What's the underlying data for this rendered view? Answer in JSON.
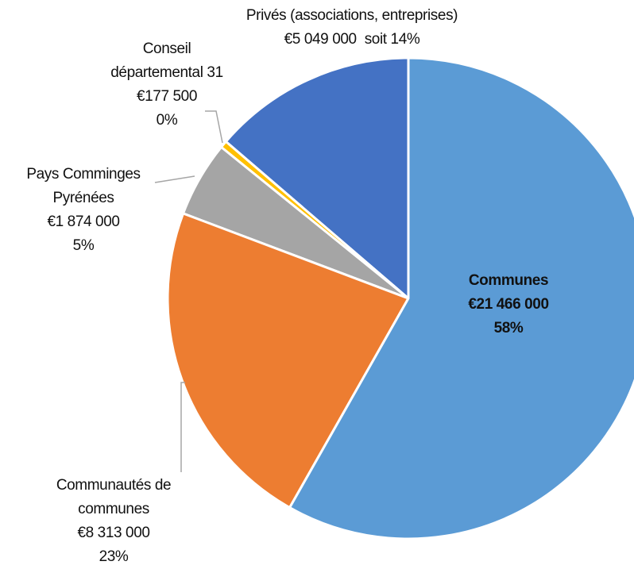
{
  "chart_data": {
    "type": "pie",
    "categories": [
      "Communes",
      "Communautés de communes",
      "Pays Comminges Pyrénées",
      "Conseil départemental 31",
      "Privés (associations, entreprises)"
    ],
    "values": [
      21466000,
      8313000,
      1874000,
      177500,
      5049000
    ],
    "value_labels": [
      "€21 466 000",
      "€8 313 000",
      "€1 874 000",
      "€177 500",
      "€5 049 000"
    ],
    "percent_labels": [
      "58%",
      "23%",
      "5%",
      "0%",
      "soit 14%"
    ],
    "colors": [
      "#5b9bd5",
      "#ed7d31",
      "#a5a5a5",
      "#ffc000",
      "#4472c4"
    ]
  }
}
